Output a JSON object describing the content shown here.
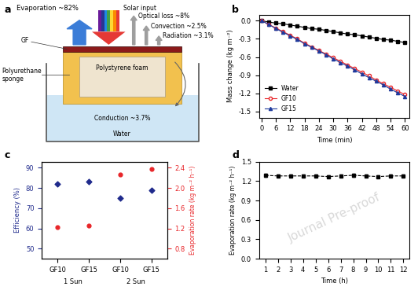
{
  "diagram": {
    "panel_label": "a",
    "texts": {
      "solar_input": "Solar input",
      "evaporation": "Evaporation ~82%",
      "optical_loss": "Optical loss ~8%",
      "convection": "Convection ~2.5%",
      "radiation": "Radiation ~3.1%",
      "gf": "GF",
      "sponge": "Polyurethane\nsponge",
      "foam": "Polystyrene foam",
      "conduction": "Conduction ~3.7%",
      "water": "Water"
    }
  },
  "watermark": "Journal Pre-proof",
  "chart_data": [
    {
      "type": "line",
      "title": "b",
      "xlabel": "Time (min)",
      "ylabel": "Mass change (kg m⁻²)",
      "x": [
        0,
        3,
        6,
        9,
        12,
        15,
        18,
        21,
        24,
        27,
        30,
        33,
        36,
        39,
        42,
        45,
        48,
        51,
        54,
        57,
        60
      ],
      "xlim": [
        -1,
        62
      ],
      "xticks": [
        0,
        6,
        12,
        18,
        24,
        30,
        36,
        42,
        48,
        54,
        60
      ],
      "ylim": [
        -1.6,
        0.1
      ],
      "yticks": [
        {
          "value": 0,
          "label": "0.0"
        },
        -0.3,
        -0.6,
        -0.9,
        -1.2,
        -1.5
      ],
      "legend": "lower left",
      "series": [
        {
          "name": "Water",
          "color": "#000000",
          "marker": "square",
          "line_style": "solid",
          "values": [
            0,
            -0.02,
            -0.04,
            -0.05,
            -0.07,
            -0.09,
            -0.11,
            -0.13,
            -0.14,
            -0.16,
            -0.18,
            -0.2,
            -0.22,
            -0.23,
            -0.25,
            -0.27,
            -0.29,
            -0.31,
            -0.32,
            -0.34,
            -0.36
          ]
        },
        {
          "name": "GF10",
          "color": "#e8262a",
          "marker": "circle",
          "line_style": "solid",
          "values": [
            0,
            -0.06,
            -0.12,
            -0.18,
            -0.24,
            -0.3,
            -0.37,
            -0.43,
            -0.49,
            -0.55,
            -0.61,
            -0.67,
            -0.73,
            -0.79,
            -0.85,
            -0.91,
            -0.98,
            -1.04,
            -1.1,
            -1.16,
            -1.22
          ]
        },
        {
          "name": "GF15",
          "color": "#1f3a9c",
          "marker": "triangle",
          "line_style": "solid",
          "values": [
            0,
            -0.06,
            -0.13,
            -0.19,
            -0.25,
            -0.31,
            -0.38,
            -0.44,
            -0.5,
            -0.56,
            -0.63,
            -0.69,
            -0.75,
            -0.81,
            -0.88,
            -0.94,
            -1.0,
            -1.06,
            -1.13,
            -1.19,
            -1.25
          ]
        }
      ]
    },
    {
      "type": "scatter",
      "title": "c",
      "ylabel": "Efficiency (%)",
      "y2label": "Evaporation rate (kg m⁻² h⁻¹)",
      "categories": [
        "GF10",
        "GF15",
        "GF10",
        "GF15"
      ],
      "groups": [
        "1 Sun",
        "1 Sun",
        "2 Sun",
        "2 Sun"
      ],
      "ylim": [
        45,
        93
      ],
      "yticks": [
        50,
        60,
        70,
        80,
        90
      ],
      "y2lim": [
        0.6,
        2.52
      ],
      "y2ticks": [
        0.8,
        1.2,
        1.6,
        2.0,
        2.4
      ],
      "series": [
        {
          "color": "#1f2a8c",
          "marker": "diamond",
          "values": [
            82,
            83,
            75,
            79
          ]
        },
        {
          "color": "#e8262a",
          "marker": "circle",
          "axis": "y2",
          "values": [
            1.22,
            1.25,
            2.27,
            2.37
          ]
        }
      ]
    },
    {
      "type": "line",
      "title": "d",
      "xlabel": "Time (h)",
      "ylabel": "Evaporation rate (kg m⁻² h⁻¹)",
      "x": [
        1,
        2,
        3,
        4,
        5,
        6,
        7,
        8,
        9,
        10,
        11,
        12
      ],
      "xlim": [
        0.5,
        12.5
      ],
      "xticks": [
        1,
        2,
        3,
        4,
        5,
        6,
        7,
        8,
        9,
        10,
        11,
        12
      ],
      "ylim": [
        0,
        1.5
      ],
      "yticks": [
        {
          "value": 0,
          "label": "0.0"
        },
        0.3,
        0.6,
        0.9,
        1.2,
        1.5
      ],
      "color": "#000000",
      "marker": "square",
      "line_style": "dashed",
      "values": [
        1.29,
        1.28,
        1.28,
        1.28,
        1.28,
        1.27,
        1.28,
        1.29,
        1.28,
        1.27,
        1.28,
        1.28
      ],
      "errors": [
        0.02,
        0.02,
        0.02,
        0.02,
        0.02,
        0.02,
        0.02,
        0.02,
        0.02,
        0.02,
        0.02,
        0.02
      ]
    }
  ]
}
